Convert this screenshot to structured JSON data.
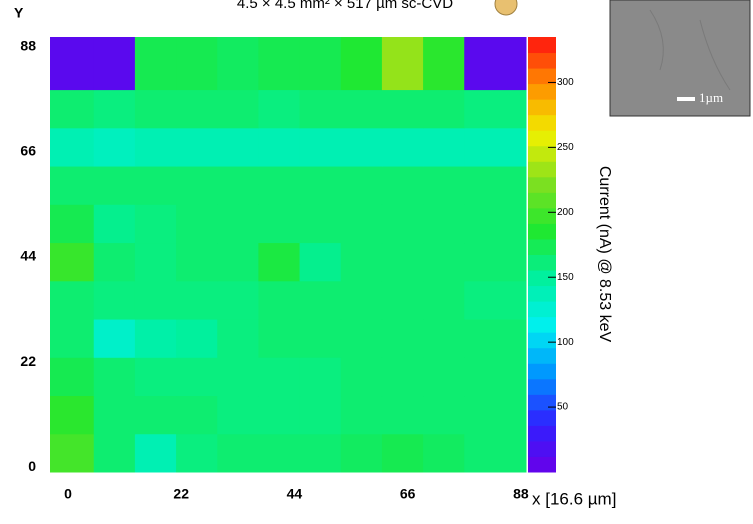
{
  "chart_data": {
    "type": "heatmap",
    "title": "4.5 × 4.5 mm² × 517 µm sc-CVD",
    "xlabel": "x [16.6 µm]",
    "ylabel": "Y",
    "colorbar_label": "Current (nA) @ 8.53 keV",
    "inset_scale_label": "1µm",
    "x_edges": [
      -3.5,
      5,
      13,
      21,
      29,
      37,
      45,
      53,
      61,
      69,
      77,
      89
    ],
    "y_edges": [
      -1,
      7,
      15,
      23,
      31,
      39,
      47,
      55,
      63,
      71,
      79,
      90
    ],
    "z": [
      [
        200,
        165,
        140,
        160,
        165,
        165,
        165,
        170,
        175,
        170,
        165
      ],
      [
        190,
        165,
        165,
        165,
        160,
        160,
        160,
        165,
        165,
        165,
        165
      ],
      [
        175,
        165,
        160,
        160,
        160,
        160,
        160,
        165,
        165,
        165,
        165
      ],
      [
        165,
        130,
        145,
        150,
        160,
        165,
        165,
        165,
        165,
        165,
        165
      ],
      [
        165,
        160,
        160,
        160,
        160,
        165,
        165,
        165,
        165,
        165,
        160
      ],
      [
        195,
        165,
        160,
        165,
        165,
        180,
        155,
        165,
        165,
        165,
        165
      ],
      [
        175,
        155,
        160,
        165,
        165,
        165,
        165,
        165,
        165,
        165,
        165
      ],
      [
        165,
        165,
        165,
        165,
        165,
        165,
        165,
        165,
        165,
        165,
        165
      ],
      [
        140,
        135,
        140,
        140,
        140,
        140,
        140,
        140,
        140,
        140,
        140
      ],
      [
        165,
        160,
        165,
        165,
        165,
        160,
        165,
        165,
        165,
        165,
        160
      ],
      [
        10,
        10,
        175,
        175,
        170,
        175,
        175,
        185,
        230,
        190,
        10
      ]
    ],
    "xlim": [
      -3.5,
      89
    ],
    "ylim": [
      -1,
      90
    ],
    "xticks": [
      0,
      22,
      44,
      66,
      88
    ],
    "yticks": [
      0,
      22,
      44,
      66,
      88
    ],
    "clim": [
      0,
      335
    ],
    "cticks": [
      50,
      100,
      150,
      200,
      250,
      300
    ],
    "colormap": [
      "#6a00e8",
      "#3020ff",
      "#0090ff",
      "#00f0f0",
      "#00f0a0",
      "#20e830",
      "#80e020",
      "#f0f000",
      "#ff9000",
      "#ff1010"
    ]
  }
}
